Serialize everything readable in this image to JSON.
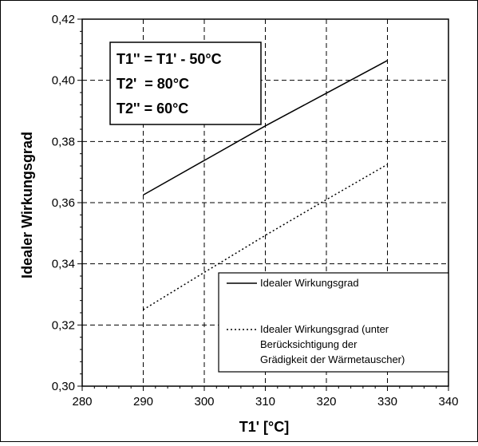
{
  "chart_data": {
    "type": "line",
    "title": "",
    "xlabel": "T1' [°C]",
    "ylabel": "Idealer Wirkungsgrad",
    "xlim": [
      280,
      340
    ],
    "ylim": [
      0.3,
      0.42
    ],
    "x_ticks": [
      280,
      290,
      300,
      310,
      320,
      330,
      340
    ],
    "x_tick_labels": [
      "280",
      "290",
      "300",
      "310",
      "320",
      "330",
      "340"
    ],
    "y_ticks": [
      0.3,
      0.32,
      0.34,
      0.36,
      0.38,
      0.4,
      0.42
    ],
    "y_tick_labels": [
      "0,30",
      "0,32",
      "0,34",
      "0,36",
      "0,38",
      "0,40",
      "0,42"
    ],
    "grid": "dashed",
    "series": [
      {
        "name": "Idealer Wirkungsgrad",
        "style": "solid",
        "x": [
          290,
          300,
          310,
          320,
          330
        ],
        "y": [
          0.3625,
          0.3738,
          0.3851,
          0.3958,
          0.4065
        ]
      },
      {
        "name": "Idealer Wirkungsgrad (unter Berücksichtigung der Grädigkeit der Wärmetauscher)",
        "name_lines": [
          "Idealer Wirkungsgrad (unter",
          "Berücksichtigung der",
          "Grädigkeit der Wärmetauscher)"
        ],
        "style": "dotted",
        "x": [
          290,
          300,
          310,
          320,
          330
        ],
        "y": [
          0.325,
          0.3372,
          0.3493,
          0.361,
          0.3725
        ]
      }
    ],
    "annotation_lines": [
      "T1'' = T1' - 50°C",
      "T2'  = 80°C",
      "T2'' = 60°C"
    ],
    "legend_position": "bottom-right"
  },
  "colors": {
    "line": "#000000",
    "grid": "#000000",
    "background": "#ffffff"
  }
}
